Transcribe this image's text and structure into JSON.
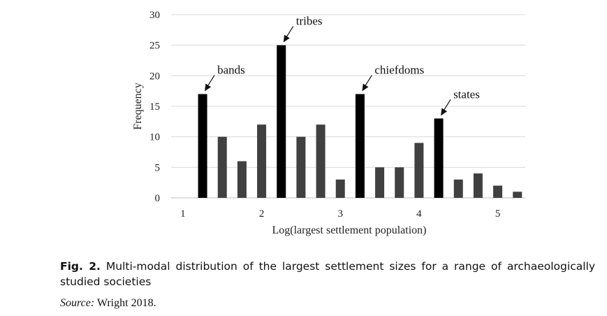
{
  "chart_data": {
    "type": "bar",
    "title": "",
    "xlabel": "Log(largest settlement population)",
    "ylabel": "Frequency",
    "ylim": [
      0,
      30
    ],
    "yticks": [
      0,
      5,
      10,
      15,
      20,
      25,
      30
    ],
    "xlim": [
      0.85,
      5.35
    ],
    "xticks": [
      1,
      2,
      3,
      4,
      5
    ],
    "grid": "horizontal",
    "x": [
      1.25,
      1.5,
      1.75,
      2.0,
      2.25,
      2.5,
      2.75,
      3.0,
      3.25,
      3.5,
      3.75,
      4.0,
      4.25,
      4.5,
      4.75,
      5.0,
      5.25
    ],
    "values": [
      17,
      10,
      6,
      12,
      25,
      10,
      12,
      3,
      17,
      5,
      5,
      9,
      13,
      3,
      4,
      2,
      1
    ],
    "highlight": [
      true,
      false,
      false,
      false,
      true,
      false,
      false,
      false,
      true,
      false,
      false,
      false,
      true,
      false,
      false,
      false,
      false
    ],
    "colors": {
      "highlight": "#000000",
      "normal": "#404040",
      "grid": "#d9d9d9",
      "axis": "#bfbfbf"
    },
    "annotations": [
      {
        "label": "bands",
        "x": 1.25,
        "y": 17
      },
      {
        "label": "tribes",
        "x": 2.25,
        "y": 25
      },
      {
        "label": "chiefdoms",
        "x": 3.25,
        "y": 17
      },
      {
        "label": "states",
        "x": 4.25,
        "y": 13
      }
    ]
  },
  "caption": {
    "fig_label": "Fig. 2.",
    "text": " Multi-modal distribution of the largest settlement sizes for a range of archaeologically studied societies"
  },
  "source": {
    "label": "Source:",
    "text": " Wright 2018."
  }
}
